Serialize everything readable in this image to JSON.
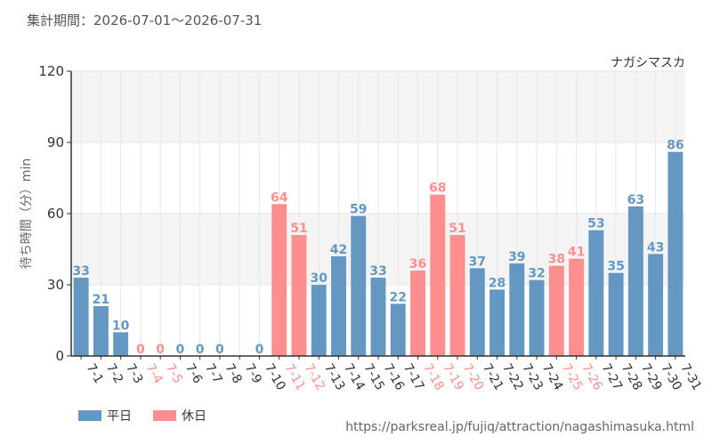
{
  "header": {
    "period": "集計期間：2026-07-01～2026-07-31"
  },
  "colors": {
    "weekday": "#6497c2",
    "holiday": "#ff8f8f",
    "grid": "#e6e6e6",
    "band": "#f4f4f4",
    "axis": "#333333"
  },
  "legend": {
    "weekday_label": "平日",
    "holiday_label": "休日"
  },
  "footer": {
    "source_url": "https://parksreal.jp/fujiq/attraction/nagashimasuka.html"
  },
  "chart_data": {
    "type": "bar",
    "title": "ナガシマスカ",
    "ylabel": "待ち時間（分）min",
    "ylim": [
      0,
      120
    ],
    "yticks": [
      0,
      30,
      60,
      90,
      120
    ],
    "categories": [
      "7-1",
      "7-2",
      "7-3",
      "7-4",
      "7-5",
      "7-6",
      "7-7",
      "7-8",
      "7-9",
      "7-10",
      "7-11",
      "7-12",
      "7-13",
      "7-14",
      "7-15",
      "7-16",
      "7-17",
      "7-18",
      "7-19",
      "7-20",
      "7-21",
      "7-22",
      "7-23",
      "7-24",
      "7-25",
      "7-26",
      "7-27",
      "7-28",
      "7-29",
      "7-30",
      "7-31"
    ],
    "values": [
      33,
      21,
      10,
      0,
      0,
      0,
      0,
      0,
      null,
      0,
      64,
      51,
      30,
      42,
      59,
      33,
      22,
      36,
      68,
      51,
      37,
      28,
      39,
      32,
      38,
      41,
      53,
      35,
      63,
      43,
      86
    ],
    "day_type": [
      "weekday",
      "weekday",
      "weekday",
      "holiday",
      "holiday",
      "weekday",
      "weekday",
      "weekday",
      "weekday",
      "weekday",
      "holiday",
      "holiday",
      "weekday",
      "weekday",
      "weekday",
      "weekday",
      "weekday",
      "holiday",
      "holiday",
      "holiday",
      "weekday",
      "weekday",
      "weekday",
      "weekday",
      "holiday",
      "holiday",
      "weekday",
      "weekday",
      "weekday",
      "weekday",
      "weekday"
    ],
    "grid": true,
    "legend_position": "bottom-left"
  }
}
